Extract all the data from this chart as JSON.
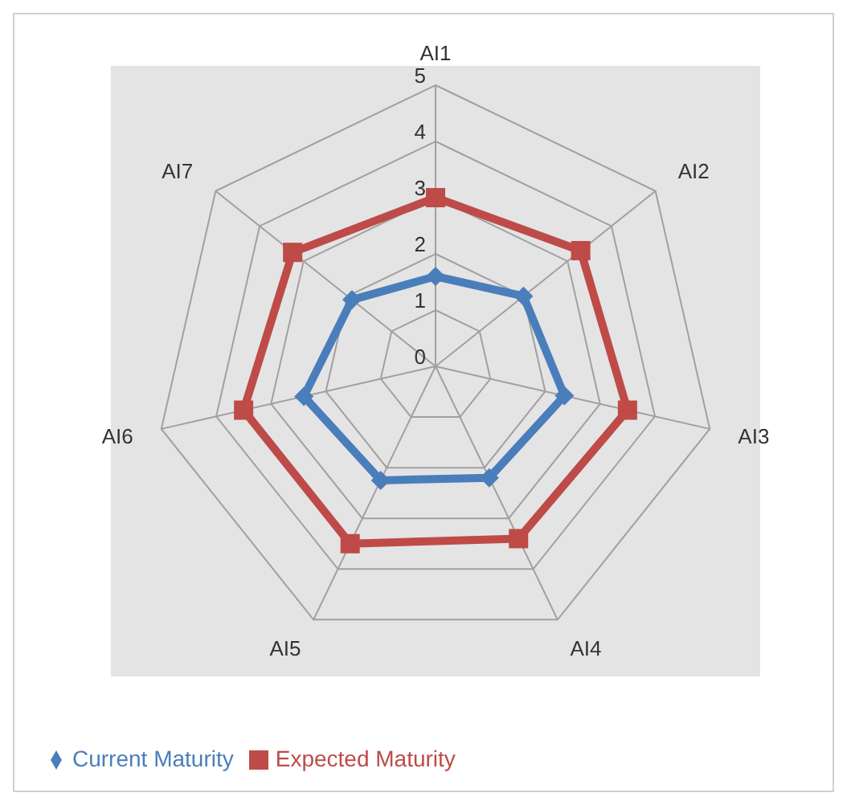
{
  "chart_data": {
    "type": "radar",
    "categories": [
      "AI1",
      "AI2",
      "AI3",
      "AI4",
      "AI5",
      "AI6",
      "AI7"
    ],
    "ylim": [
      0,
      5
    ],
    "yticks": [
      0,
      1,
      2,
      3,
      4,
      5
    ],
    "grid": true,
    "legend": "bottom",
    "series": [
      {
        "name": "Current Maturity",
        "color": "#4a7ebb",
        "marker": "diamond",
        "values": [
          1.6,
          2.0,
          2.35,
          2.2,
          2.25,
          2.4,
          1.9
        ]
      },
      {
        "name": "Expected Maturity",
        "color": "#be4b48",
        "marker": "square",
        "values": [
          3.0,
          3.3,
          3.5,
          3.4,
          3.5,
          3.5,
          3.25
        ]
      }
    ]
  }
}
